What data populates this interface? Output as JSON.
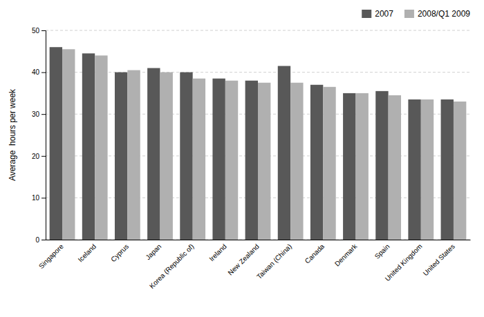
{
  "chart_data": {
    "type": "bar",
    "categories": [
      "Singapore",
      "Iceland",
      "Cyprus",
      "Japan",
      "Korea (Republic of)",
      "Ireland",
      "New Zealand",
      "Taiwan (China)",
      "Canada",
      "Denmark",
      "Spain",
      "United Kingdom",
      "United States"
    ],
    "series": [
      {
        "name": "2007",
        "color": "#585858",
        "values": [
          46,
          44.5,
          40,
          41,
          40,
          38.5,
          38,
          41.5,
          37,
          35,
          35.5,
          33.5,
          33.5
        ]
      },
      {
        "name": "2008/Q1 2009",
        "color": "#b0b0b0",
        "values": [
          45.5,
          44,
          40.5,
          40,
          38.5,
          38,
          37.5,
          37.5,
          36.5,
          35,
          34.5,
          33.5,
          33
        ]
      }
    ],
    "ylabel": "Average  hours per week",
    "ylim": [
      0,
      50
    ],
    "yticks": [
      0,
      10,
      20,
      30,
      40,
      50
    ],
    "grid": true,
    "legend": "upper right"
  }
}
